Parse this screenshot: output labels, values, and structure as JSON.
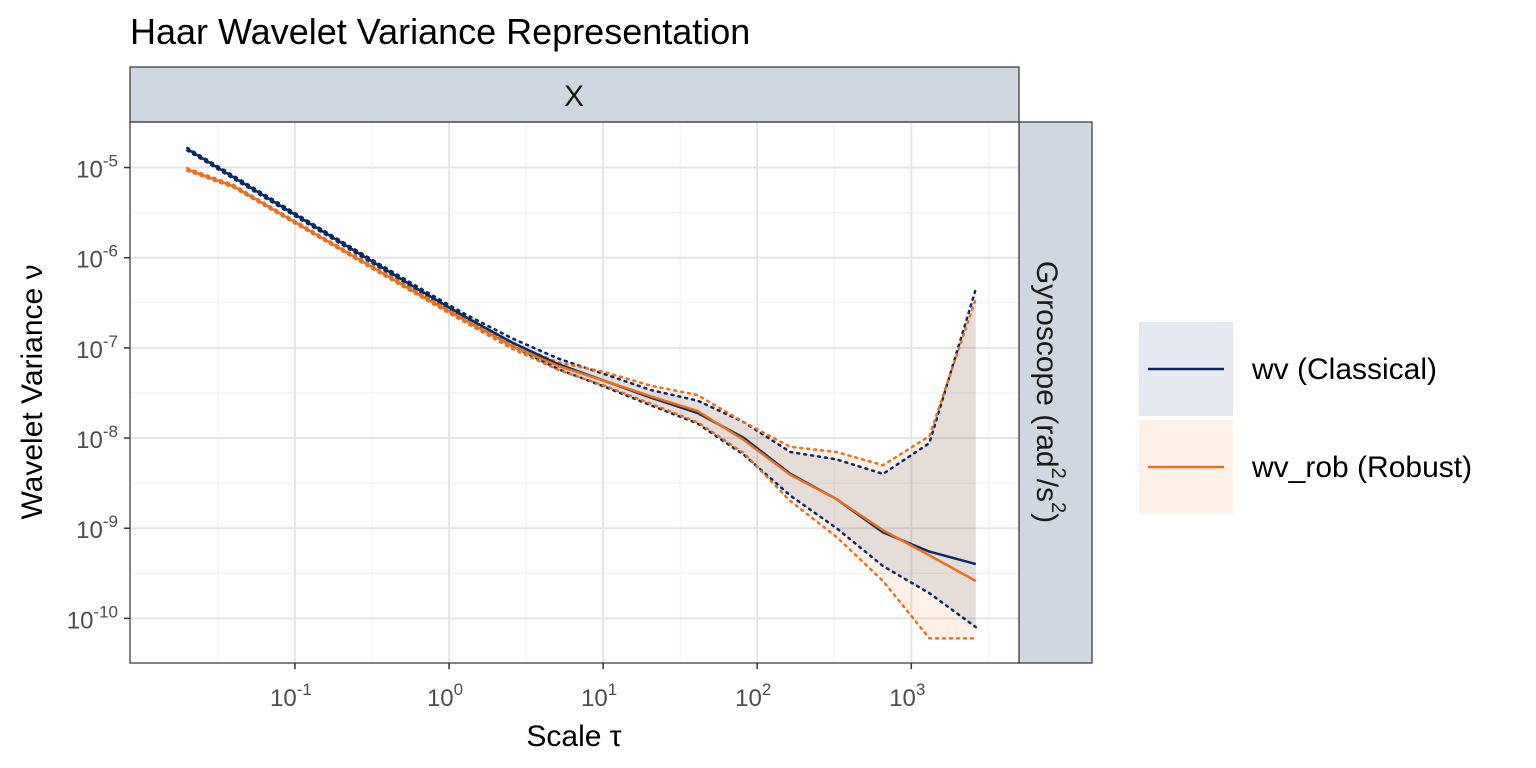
{
  "chart_data": {
    "type": "line",
    "title": "Haar Wavelet Variance Representation",
    "facet_column_label": "X",
    "facet_row_label": "Gyroscope (rad^2/s^2)",
    "xlabel": "Scale τ",
    "ylabel": "Wavelet Variance ν",
    "x_scale": "log10",
    "y_scale": "log10",
    "xlim": [
      0.0085,
      5000
    ],
    "ylim": [
      3.2e-11,
      3.2e-05
    ],
    "x_ticks": [
      {
        "value": 0.1,
        "base": "10",
        "exp": "-1"
      },
      {
        "value": 1,
        "base": "10",
        "exp": "0"
      },
      {
        "value": 10,
        "base": "10",
        "exp": "1"
      },
      {
        "value": 100,
        "base": "10",
        "exp": "2"
      },
      {
        "value": 1000,
        "base": "10",
        "exp": "3"
      }
    ],
    "y_ticks": [
      {
        "value": 1e-05,
        "base": "10",
        "exp": "-5"
      },
      {
        "value": 1e-06,
        "base": "10",
        "exp": "-6"
      },
      {
        "value": 1e-07,
        "base": "10",
        "exp": "-7"
      },
      {
        "value": 1e-08,
        "base": "10",
        "exp": "-8"
      },
      {
        "value": 1e-09,
        "base": "10",
        "exp": "-9"
      },
      {
        "value": 1e-10,
        "base": "10",
        "exp": "-10"
      }
    ],
    "x": [
      0.02,
      0.04,
      0.08,
      0.16,
      0.32,
      0.64,
      1.28,
      2.56,
      5.12,
      10.24,
      20.48,
      40.96,
      81.92,
      163.84,
      327.68,
      655.36,
      1310.72,
      2621.44
    ],
    "series": [
      {
        "name": "wv (Classical)",
        "color": "#0b2a63",
        "values": [
          1.6e-05,
          7.8e-06,
          3.8e-06,
          1.85e-06,
          9e-07,
          4.4e-07,
          2.2e-07,
          1.15e-07,
          6.6e-08,
          4.3e-08,
          2.8e-08,
          1.9e-08,
          1e-08,
          4e-09,
          2.1e-09,
          9e-10,
          5.5e-10,
          4e-10
        ],
        "ci_lower": [
          1.55e-05,
          7.5e-06,
          3.65e-06,
          1.78e-06,
          8.6e-07,
          4.2e-07,
          2.05e-07,
          1.05e-07,
          5.8e-08,
          3.7e-08,
          2.3e-08,
          1.45e-08,
          6.5e-09,
          2.3e-09,
          1e-09,
          3.8e-10,
          1.9e-10,
          8e-11
        ],
        "ci_upper": [
          1.65e-05,
          8.1e-06,
          3.95e-06,
          1.92e-06,
          9.4e-07,
          4.65e-07,
          2.35e-07,
          1.28e-07,
          7.6e-08,
          5.1e-08,
          3.4e-08,
          2.6e-08,
          1.5e-08,
          7e-09,
          5.8e-09,
          4e-09,
          8.8e-09,
          4.5e-07
        ]
      },
      {
        "name": "wv_rob (Robust)",
        "color": "#e8711f",
        "values": [
          9.5e-06,
          6.2e-06,
          3.1e-06,
          1.55e-06,
          7.8e-07,
          3.9e-07,
          2e-07,
          1.05e-07,
          6.3e-08,
          4.3e-08,
          2.9e-08,
          2e-08,
          9.5e-09,
          3.9e-09,
          2.1e-09,
          9.5e-10,
          5e-10,
          2.6e-10
        ],
        "ci_lower": [
          9.2e-06,
          6e-06,
          3e-06,
          1.5e-06,
          7.5e-07,
          3.75e-07,
          1.9e-07,
          9.8e-08,
          5.7e-08,
          3.8e-08,
          2.4e-08,
          1.5e-08,
          6.8e-09,
          2e-09,
          8e-10,
          2.6e-10,
          6e-11,
          6e-11
        ],
        "ci_upper": [
          9.8e-06,
          6.4e-06,
          3.2e-06,
          1.6e-06,
          8.1e-07,
          4.05e-07,
          2.1e-07,
          1.12e-07,
          6.9e-08,
          5.4e-08,
          3.8e-08,
          3e-08,
          1.5e-08,
          8e-09,
          7e-09,
          5e-09,
          1.05e-08,
          3.5e-07
        ]
      }
    ],
    "legend_position": "right",
    "grid": true
  }
}
